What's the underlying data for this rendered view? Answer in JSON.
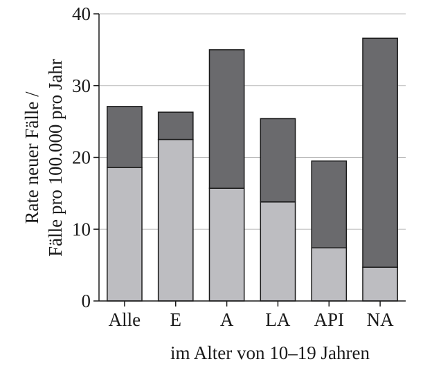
{
  "chart_data": {
    "type": "bar",
    "stacked": true,
    "categories": [
      "Alle",
      "E",
      "A",
      "LA",
      "API",
      "NA"
    ],
    "series": [
      {
        "values": [
          18.6,
          22.5,
          15.7,
          13.8,
          7.4,
          4.7
        ],
        "color": "#bdbdc1"
      },
      {
        "values": [
          8.5,
          3.8,
          19.3,
          11.6,
          12.1,
          31.9
        ],
        "color": "#6a6a6d"
      }
    ],
    "totals": [
      27.1,
      26.3,
      35.0,
      25.4,
      19.5,
      36.6
    ],
    "ylabel_line1": "Rate neuer Fälle /",
    "ylabel_line2": "Fälle pro 100.000 pro Jahr",
    "xlabel": "im Alter von 10–19 Jahren",
    "ylim": [
      0,
      40
    ],
    "yticks": [
      0,
      10,
      20,
      30,
      40
    ],
    "grid": "horizontal"
  }
}
